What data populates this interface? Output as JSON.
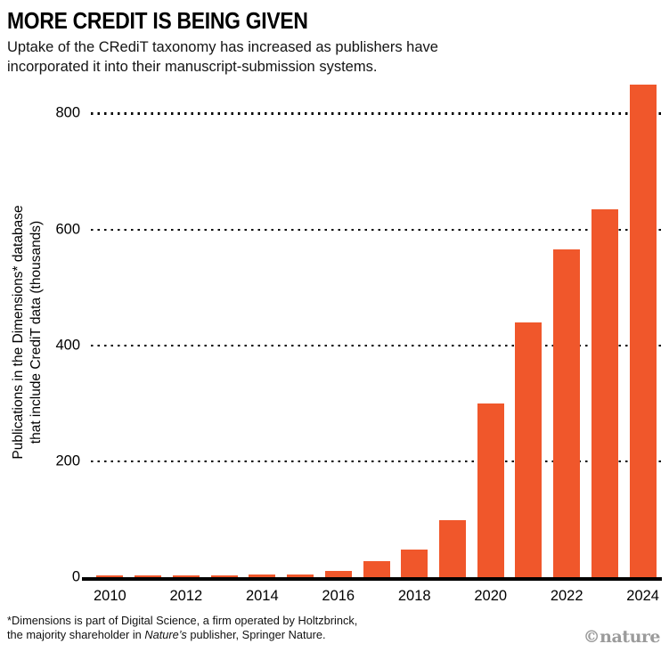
{
  "header": {
    "title": "MORE CREDIT IS BEING GIVEN",
    "subtitle": "Uptake of the CRediT taxonomy has increased as publishers have incorporated it into their manuscript-submission systems."
  },
  "chart_data": {
    "type": "bar",
    "title": "MORE CREDIT IS BEING GIVEN",
    "categories": [
      2010,
      2011,
      2012,
      2013,
      2014,
      2015,
      2016,
      2017,
      2018,
      2019,
      2020,
      2021,
      2022,
      2023,
      2024
    ],
    "values": [
      3,
      3,
      3,
      3,
      4,
      5,
      11,
      28,
      48,
      98,
      300,
      440,
      565,
      635,
      850
    ],
    "xlabel": "",
    "ylabel": "Publications in the Dimensions* database that include CrediT data (thousands)",
    "ylabel_line1": "Publications in the Dimensions* database",
    "ylabel_line2": "that include CrediT data (thousands)",
    "ylim": [
      0,
      850
    ],
    "yticks": [
      0,
      200,
      400,
      600,
      800
    ],
    "xticks_shown": [
      "2010",
      "2012",
      "2014",
      "2016",
      "2018",
      "2020",
      "2022",
      "2024"
    ],
    "bar_color": "#F0572B",
    "grid": "horizontal-dotted",
    "legend": "none"
  },
  "footnote": {
    "line1": "*Dimensions is part of Digital Science, a firm operated by Holtzbrinck,",
    "line2_pre": "the majority shareholder in ",
    "line2_italic": "Nature’s",
    "line2_post": " publisher, Springer Nature."
  },
  "branding": {
    "credit": "©nature"
  }
}
